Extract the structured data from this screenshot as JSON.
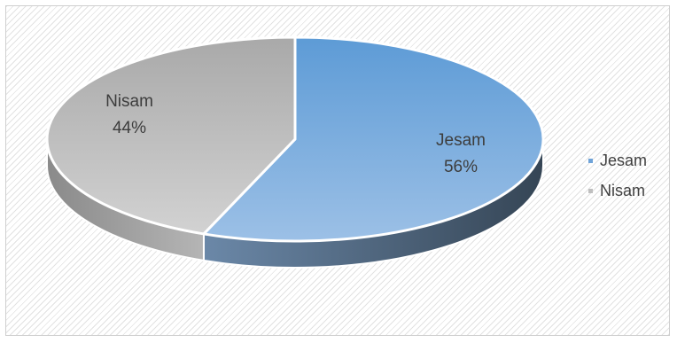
{
  "chart_data": {
    "type": "pie",
    "style": "3d",
    "series": [
      {
        "name": "Jesam",
        "value": 56,
        "label": "56%",
        "color": "#6fa3d8",
        "side_color": "#4a5d73"
      },
      {
        "name": "Nisam",
        "value": 44,
        "label": "44%",
        "color": "#bfbfbf",
        "side_color": "#9a9a9a"
      }
    ],
    "legend": [
      "Jesam",
      "Nisam"
    ],
    "legend_position": "right"
  }
}
